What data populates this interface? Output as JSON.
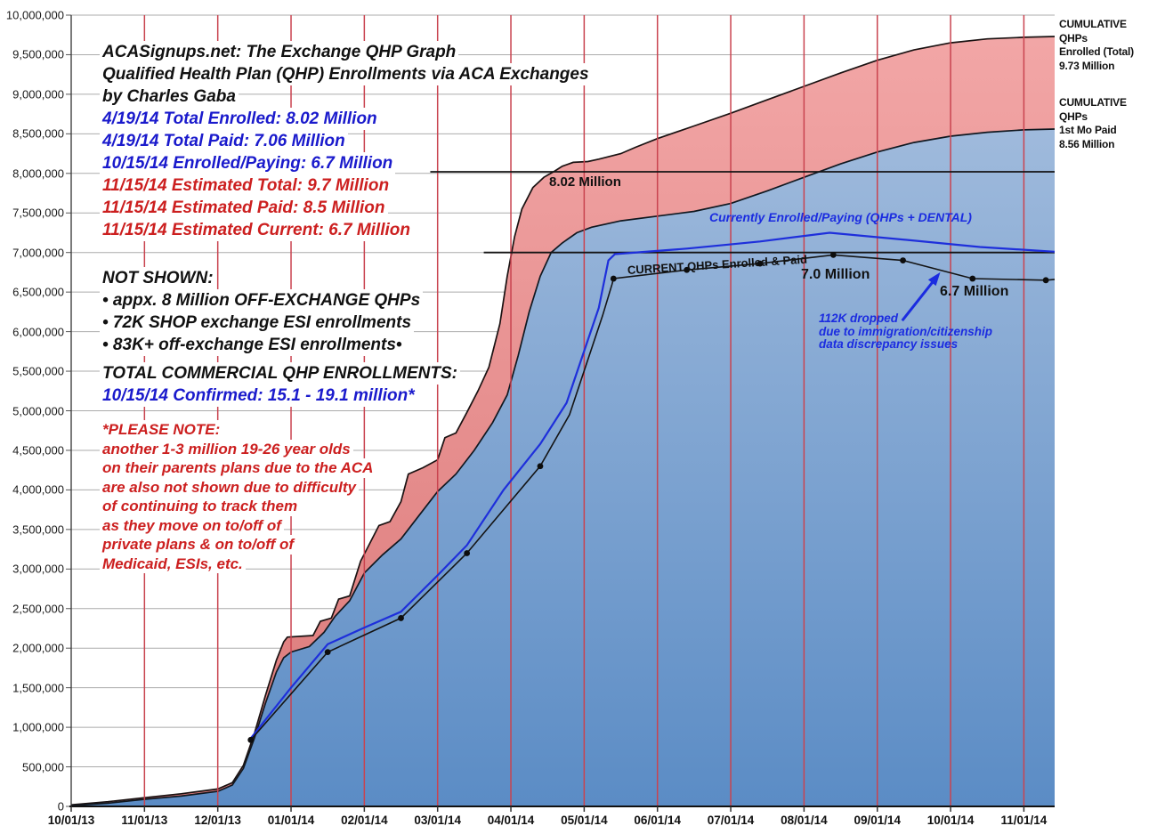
{
  "title": {
    "lines": [
      "ACASignups.net: The Exchange QHP Graph",
      "Qualified Health Plan (QHP) Enrollments via ACA Exchanges",
      "by Charles Gaba",
      "4/19/14 Total Enrolled: 8.02 Million",
      "4/19/14 Total Paid: 7.06 Million",
      "10/15/14 Enrolled/Paying: 6.7 Million",
      "11/15/14 Estimated Total: 9.7 Million",
      "11/15/14 Estimated Paid: 8.5 Million",
      "11/15/14 Estimated Current: 6.7 Million"
    ]
  },
  "not_shown": {
    "heading": "NOT SHOWN:",
    "bullets": [
      "• appx. 8 Million OFF-EXCHANGE QHPs",
      "• 72K SHOP exchange ESI enrollments",
      "• 83K+ off-exchange ESI enrollments•"
    ]
  },
  "total_commercial": {
    "heading": "TOTAL COMMERCIAL QHP ENROLLMENTS:",
    "value_line": "10/15/14 Confirmed: 15.1 - 19.1 million*"
  },
  "please_note": {
    "lines": [
      "*PLEASE NOTE:",
      "another 1-3 million 19-26 year olds",
      "on their parents plans due to the ACA",
      "are also not shown due to difficulty",
      "of continuing to track them",
      "as they move on to/off of",
      "private plans & on to/off of",
      "Medicaid, ESIs, etc."
    ]
  },
  "right_labels": {
    "enrolled": {
      "l1": "CUMULATIVE QHPs",
      "l2": "Enrolled (Total)",
      "l3": "9.73 Million"
    },
    "paid": {
      "l1": "CUMULATIVE QHPs",
      "l2": "1st Mo Paid",
      "l3": "8.56 Million"
    }
  },
  "plot_labels": {
    "peak": "8.02 Million",
    "currently": "Currently Enrolled/Paying (QHPs + DENTAL)",
    "current_line": "CURRENT QHPs Enrolled & Paid",
    "seven": "7.0 Million",
    "six_seven": "6.7 Million",
    "dropped_lines": [
      "112K dropped",
      "due to immigration/citizenship",
      "data discrepancy issues"
    ]
  },
  "chart_data": {
    "type": "area",
    "title": "ACASignups.net: The Exchange QHP Graph",
    "xlabel": "",
    "ylabel": "",
    "x_categories": [
      "10/01/13",
      "11/01/13",
      "12/01/13",
      "01/01/14",
      "02/01/14",
      "03/01/14",
      "04/01/14",
      "05/01/14",
      "06/01/14",
      "07/01/14",
      "08/01/14",
      "09/01/14",
      "10/01/14",
      "11/01/14"
    ],
    "x_months_domain": [
      0,
      13.42
    ],
    "ylim_millions": [
      0,
      10
    ],
    "y_step_millions": 0.5,
    "grid": true,
    "colors": {
      "red_area_top": "#F2A6A6",
      "red_area_bottom": "#DB7878",
      "blue_area_top": "#9FBADC",
      "blue_area_bottom": "#5B8CC5",
      "month_gridline": "#C9434F",
      "h_gridline": "#ABABAB",
      "blue_line": "#1E2FDB",
      "black_line": "#141414",
      "arrow_blue": "#1B2CE0"
    },
    "series": [
      {
        "name": "CUMULATIVE QHPs Enrolled (Total)",
        "kind": "area",
        "end_label": "9.73 Million",
        "end_value_millions": 9.73,
        "points_month_millions": [
          [
            0,
            0.02
          ],
          [
            0.5,
            0.06
          ],
          [
            1,
            0.11
          ],
          [
            1.5,
            0.16
          ],
          [
            2,
            0.22
          ],
          [
            2.2,
            0.3
          ],
          [
            2.35,
            0.52
          ],
          [
            2.5,
            0.92
          ],
          [
            2.65,
            1.4
          ],
          [
            2.8,
            1.85
          ],
          [
            2.9,
            2.08
          ],
          [
            2.95,
            2.14
          ],
          [
            3.3,
            2.16
          ],
          [
            3.4,
            2.34
          ],
          [
            3.55,
            2.38
          ],
          [
            3.65,
            2.62
          ],
          [
            3.8,
            2.66
          ],
          [
            3.95,
            3.1
          ],
          [
            4.05,
            3.28
          ],
          [
            4.2,
            3.55
          ],
          [
            4.35,
            3.6
          ],
          [
            4.5,
            3.85
          ],
          [
            4.6,
            4.2
          ],
          [
            4.8,
            4.28
          ],
          [
            5.0,
            4.38
          ],
          [
            5.1,
            4.66
          ],
          [
            5.25,
            4.72
          ],
          [
            5.4,
            4.98
          ],
          [
            5.55,
            5.25
          ],
          [
            5.7,
            5.55
          ],
          [
            5.85,
            6.1
          ],
          [
            5.95,
            6.7
          ],
          [
            6.05,
            7.2
          ],
          [
            6.15,
            7.55
          ],
          [
            6.3,
            7.82
          ],
          [
            6.45,
            7.95
          ],
          [
            6.6,
            8.03
          ],
          [
            6.7,
            8.09
          ],
          [
            6.85,
            8.14
          ],
          [
            7.05,
            8.15
          ],
          [
            7.2,
            8.18
          ],
          [
            7.5,
            8.25
          ],
          [
            7.7,
            8.33
          ],
          [
            8.0,
            8.44
          ],
          [
            8.5,
            8.6
          ],
          [
            9.0,
            8.76
          ],
          [
            9.5,
            8.93
          ],
          [
            10.0,
            9.1
          ],
          [
            10.5,
            9.27
          ],
          [
            11.0,
            9.43
          ],
          [
            11.5,
            9.56
          ],
          [
            12.0,
            9.65
          ],
          [
            12.5,
            9.7
          ],
          [
            13.0,
            9.72
          ],
          [
            13.42,
            9.73
          ]
        ]
      },
      {
        "name": "CUMULATIVE QHPs 1st Mo Paid",
        "kind": "area",
        "end_label": "8.56 Million",
        "end_value_millions": 8.56,
        "points_month_millions": [
          [
            0,
            0.01
          ],
          [
            0.5,
            0.04
          ],
          [
            1,
            0.09
          ],
          [
            1.5,
            0.13
          ],
          [
            2,
            0.19
          ],
          [
            2.2,
            0.27
          ],
          [
            2.35,
            0.48
          ],
          [
            2.5,
            0.86
          ],
          [
            2.65,
            1.3
          ],
          [
            2.8,
            1.7
          ],
          [
            2.9,
            1.88
          ],
          [
            3.0,
            1.95
          ],
          [
            3.25,
            2.02
          ],
          [
            3.45,
            2.2
          ],
          [
            3.6,
            2.4
          ],
          [
            3.8,
            2.6
          ],
          [
            4.0,
            2.95
          ],
          [
            4.25,
            3.18
          ],
          [
            4.5,
            3.38
          ],
          [
            4.75,
            3.68
          ],
          [
            5.0,
            3.98
          ],
          [
            5.25,
            4.2
          ],
          [
            5.5,
            4.5
          ],
          [
            5.75,
            4.85
          ],
          [
            5.95,
            5.2
          ],
          [
            6.1,
            5.7
          ],
          [
            6.25,
            6.25
          ],
          [
            6.4,
            6.7
          ],
          [
            6.55,
            7.0
          ],
          [
            6.7,
            7.12
          ],
          [
            6.9,
            7.25
          ],
          [
            7.1,
            7.32
          ],
          [
            7.5,
            7.4
          ],
          [
            8.0,
            7.46
          ],
          [
            8.5,
            7.52
          ],
          [
            9.0,
            7.62
          ],
          [
            9.5,
            7.78
          ],
          [
            10.0,
            7.95
          ],
          [
            10.5,
            8.12
          ],
          [
            11.0,
            8.27
          ],
          [
            11.5,
            8.39
          ],
          [
            12.0,
            8.47
          ],
          [
            12.5,
            8.52
          ],
          [
            13.0,
            8.55
          ],
          [
            13.42,
            8.56
          ]
        ]
      },
      {
        "name": "Currently Enrolled/Paying (QHPs + DENTAL)",
        "kind": "line",
        "peak_value_millions": 7.25,
        "end_value_millions": 7.01,
        "points_month_millions": [
          [
            2.45,
            0.86
          ],
          [
            3.0,
            1.5
          ],
          [
            3.5,
            2.05
          ],
          [
            4.0,
            2.26
          ],
          [
            4.5,
            2.46
          ],
          [
            5.0,
            2.92
          ],
          [
            5.4,
            3.3
          ],
          [
            5.9,
            4.0
          ],
          [
            6.4,
            4.58
          ],
          [
            6.76,
            5.1
          ],
          [
            7.2,
            6.3
          ],
          [
            7.33,
            6.9
          ],
          [
            7.42,
            6.98
          ],
          [
            8.4,
            7.05
          ],
          [
            9.4,
            7.14
          ],
          [
            10.35,
            7.25
          ],
          [
            11.4,
            7.16
          ],
          [
            12.4,
            7.07
          ],
          [
            13.42,
            7.01
          ]
        ]
      },
      {
        "name": "CURRENT QHPs Enrolled & Paid",
        "kind": "line+markers",
        "end_value_millions": 6.66,
        "points_month_millions": [
          [
            2.45,
            0.84
          ],
          [
            3.5,
            1.95
          ],
          [
            4.5,
            2.38
          ],
          [
            5.4,
            3.2
          ],
          [
            6.4,
            4.3
          ],
          [
            6.8,
            4.95
          ],
          [
            7.25,
            6.2
          ],
          [
            7.38,
            6.6
          ],
          [
            7.4,
            6.67
          ],
          [
            8.4,
            6.78
          ],
          [
            9.4,
            6.86
          ],
          [
            10.4,
            6.97
          ],
          [
            11.35,
            6.9
          ],
          [
            12.3,
            6.67
          ],
          [
            13.3,
            6.65
          ],
          [
            13.42,
            6.66
          ]
        ],
        "markers_month_millions": [
          [
            2.45,
            0.84
          ],
          [
            3.5,
            1.95
          ],
          [
            4.5,
            2.38
          ],
          [
            5.4,
            3.2
          ],
          [
            6.4,
            4.3
          ],
          [
            7.4,
            6.67
          ],
          [
            8.4,
            6.78
          ],
          [
            9.4,
            6.86
          ],
          [
            10.4,
            6.97
          ],
          [
            11.35,
            6.9
          ],
          [
            12.3,
            6.67
          ],
          [
            13.3,
            6.65
          ]
        ]
      }
    ],
    "reference_lines": [
      {
        "label": "8.02 Million",
        "value_millions": 8.02,
        "from_month": 4.9
      },
      {
        "label": "7.0 Million",
        "value_millions": 7.0,
        "from_month": 5.63
      }
    ],
    "annotation_arrow": {
      "from_month_millions": [
        11.34,
        6.14
      ],
      "to_month_millions": [
        11.86,
        6.75
      ]
    },
    "legend_position": "annotations-in-plot"
  }
}
